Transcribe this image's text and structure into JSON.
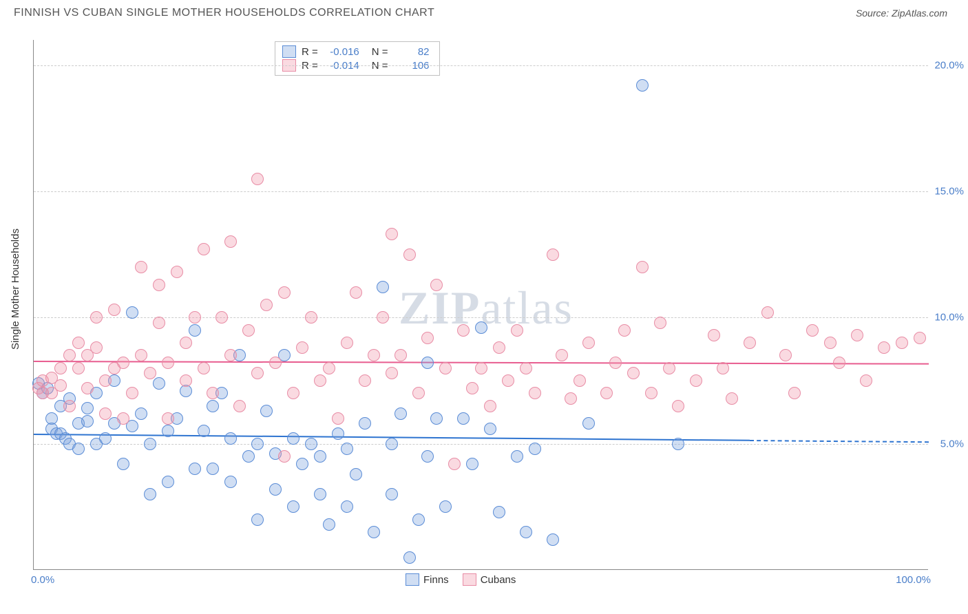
{
  "title": "FINNISH VS CUBAN SINGLE MOTHER HOUSEHOLDS CORRELATION CHART",
  "source_label": "Source: ZipAtlas.com",
  "y_axis_title": "Single Mother Households",
  "watermark_bold": "ZIP",
  "watermark_rest": "atlas",
  "chart": {
    "type": "scatter",
    "xlim": [
      0,
      100
    ],
    "ylim": [
      0,
      21
    ],
    "y_ticks": [
      5,
      10,
      15,
      20
    ],
    "y_tick_labels": [
      "5.0%",
      "10.0%",
      "15.0%",
      "20.0%"
    ],
    "x_tick_left": "0.0%",
    "x_tick_right": "100.0%",
    "background_color": "#ffffff",
    "grid_color": "#cccccc",
    "marker_radius": 9,
    "marker_border_width": 1.2,
    "series": [
      {
        "name": "Finns",
        "fill": "rgba(120,160,220,0.35)",
        "stroke": "#5a8cd6",
        "trend_color": "#2e74d0",
        "trend_y_start": 5.4,
        "trend_y_end": 5.1,
        "trend_solid_end_x": 80,
        "R": "-0.016",
        "N": "82",
        "points": [
          [
            0.5,
            7.4
          ],
          [
            1,
            7.0
          ],
          [
            1.5,
            7.2
          ],
          [
            2,
            6.0
          ],
          [
            2,
            5.6
          ],
          [
            2.5,
            5.4
          ],
          [
            3,
            5.4
          ],
          [
            3,
            6.5
          ],
          [
            3.5,
            5.2
          ],
          [
            4,
            6.8
          ],
          [
            4,
            5.0
          ],
          [
            5,
            5.8
          ],
          [
            5,
            4.8
          ],
          [
            6,
            5.9
          ],
          [
            6,
            6.4
          ],
          [
            7,
            7.0
          ],
          [
            7,
            5.0
          ],
          [
            8,
            5.2
          ],
          [
            9,
            7.5
          ],
          [
            9,
            5.8
          ],
          [
            10,
            4.2
          ],
          [
            11,
            10.2
          ],
          [
            11,
            5.7
          ],
          [
            12,
            6.2
          ],
          [
            13,
            3.0
          ],
          [
            13,
            5.0
          ],
          [
            14,
            7.4
          ],
          [
            15,
            3.5
          ],
          [
            15,
            5.5
          ],
          [
            16,
            6.0
          ],
          [
            17,
            7.1
          ],
          [
            18,
            4.0
          ],
          [
            18,
            9.5
          ],
          [
            19,
            5.5
          ],
          [
            20,
            6.5
          ],
          [
            20,
            4.0
          ],
          [
            21,
            7.0
          ],
          [
            22,
            3.5
          ],
          [
            22,
            5.2
          ],
          [
            23,
            8.5
          ],
          [
            24,
            4.5
          ],
          [
            25,
            2.0
          ],
          [
            25,
            5.0
          ],
          [
            26,
            6.3
          ],
          [
            27,
            3.2
          ],
          [
            27,
            4.6
          ],
          [
            28,
            8.5
          ],
          [
            29,
            5.2
          ],
          [
            29,
            2.5
          ],
          [
            30,
            4.2
          ],
          [
            31,
            5.0
          ],
          [
            32,
            3.0
          ],
          [
            32,
            4.5
          ],
          [
            33,
            1.8
          ],
          [
            34,
            5.4
          ],
          [
            35,
            2.5
          ],
          [
            35,
            4.8
          ],
          [
            36,
            3.8
          ],
          [
            37,
            5.8
          ],
          [
            38,
            1.5
          ],
          [
            39,
            11.2
          ],
          [
            40,
            5.0
          ],
          [
            40,
            3.0
          ],
          [
            41,
            6.2
          ],
          [
            42,
            0.5
          ],
          [
            43,
            2.0
          ],
          [
            44,
            8.2
          ],
          [
            44,
            4.5
          ],
          [
            45,
            6.0
          ],
          [
            46,
            2.5
          ],
          [
            48,
            6.0
          ],
          [
            49,
            4.2
          ],
          [
            50,
            9.6
          ],
          [
            51,
            5.6
          ],
          [
            52,
            2.3
          ],
          [
            54,
            4.5
          ],
          [
            55,
            1.5
          ],
          [
            56,
            4.8
          ],
          [
            58,
            1.2
          ],
          [
            62,
            5.8
          ],
          [
            68,
            19.2
          ],
          [
            72,
            5.0
          ]
        ]
      },
      {
        "name": "Cubans",
        "fill": "rgba(240,150,170,0.35)",
        "stroke": "#e88ca5",
        "trend_color": "#e85c8f",
        "trend_y_start": 8.3,
        "trend_y_end": 8.2,
        "trend_solid_end_x": 100,
        "R": "-0.014",
        "N": "106",
        "points": [
          [
            0.5,
            7.2
          ],
          [
            1,
            7.5
          ],
          [
            1,
            7.0
          ],
          [
            2,
            7.6
          ],
          [
            2,
            7.0
          ],
          [
            3,
            8.0
          ],
          [
            3,
            7.3
          ],
          [
            4,
            8.5
          ],
          [
            4,
            6.5
          ],
          [
            5,
            8.0
          ],
          [
            5,
            9.0
          ],
          [
            6,
            8.5
          ],
          [
            6,
            7.2
          ],
          [
            7,
            8.8
          ],
          [
            7,
            10.0
          ],
          [
            8,
            7.5
          ],
          [
            8,
            6.2
          ],
          [
            9,
            10.3
          ],
          [
            9,
            8.0
          ],
          [
            10,
            8.2
          ],
          [
            10,
            6.0
          ],
          [
            11,
            7.0
          ],
          [
            12,
            12.0
          ],
          [
            12,
            8.5
          ],
          [
            13,
            7.8
          ],
          [
            14,
            9.8
          ],
          [
            14,
            11.3
          ],
          [
            15,
            8.2
          ],
          [
            15,
            6.0
          ],
          [
            16,
            11.8
          ],
          [
            17,
            9.0
          ],
          [
            17,
            7.5
          ],
          [
            18,
            10.0
          ],
          [
            19,
            12.7
          ],
          [
            19,
            8.0
          ],
          [
            20,
            7.0
          ],
          [
            21,
            10.0
          ],
          [
            22,
            13.0
          ],
          [
            22,
            8.5
          ],
          [
            23,
            6.5
          ],
          [
            24,
            9.5
          ],
          [
            25,
            15.5
          ],
          [
            25,
            7.8
          ],
          [
            26,
            10.5
          ],
          [
            27,
            8.2
          ],
          [
            28,
            11.0
          ],
          [
            28,
            4.5
          ],
          [
            29,
            7.0
          ],
          [
            30,
            8.8
          ],
          [
            31,
            10.0
          ],
          [
            32,
            7.5
          ],
          [
            33,
            8.0
          ],
          [
            34,
            6.0
          ],
          [
            35,
            9.0
          ],
          [
            36,
            11.0
          ],
          [
            37,
            7.5
          ],
          [
            38,
            8.5
          ],
          [
            39,
            10.0
          ],
          [
            40,
            13.3
          ],
          [
            40,
            7.8
          ],
          [
            41,
            8.5
          ],
          [
            42,
            12.5
          ],
          [
            43,
            7.0
          ],
          [
            44,
            9.2
          ],
          [
            45,
            11.3
          ],
          [
            46,
            8.0
          ],
          [
            47,
            4.2
          ],
          [
            48,
            9.5
          ],
          [
            49,
            7.2
          ],
          [
            50,
            8.0
          ],
          [
            51,
            6.5
          ],
          [
            52,
            8.8
          ],
          [
            53,
            7.5
          ],
          [
            54,
            9.5
          ],
          [
            55,
            8.0
          ],
          [
            56,
            7.0
          ],
          [
            58,
            12.5
          ],
          [
            59,
            8.5
          ],
          [
            60,
            6.8
          ],
          [
            61,
            7.5
          ],
          [
            62,
            9.0
          ],
          [
            64,
            7.0
          ],
          [
            65,
            8.2
          ],
          [
            66,
            9.5
          ],
          [
            67,
            7.8
          ],
          [
            68,
            12.0
          ],
          [
            69,
            7.0
          ],
          [
            70,
            9.8
          ],
          [
            71,
            8.0
          ],
          [
            72,
            6.5
          ],
          [
            74,
            7.5
          ],
          [
            76,
            9.3
          ],
          [
            77,
            8.0
          ],
          [
            78,
            6.8
          ],
          [
            80,
            9.0
          ],
          [
            82,
            10.2
          ],
          [
            84,
            8.5
          ],
          [
            85,
            7.0
          ],
          [
            87,
            9.5
          ],
          [
            89,
            9.0
          ],
          [
            90,
            8.2
          ],
          [
            92,
            9.3
          ],
          [
            93,
            7.5
          ],
          [
            95,
            8.8
          ],
          [
            97,
            9.0
          ],
          [
            99,
            9.2
          ]
        ]
      }
    ]
  },
  "legend_corr_labels": {
    "r_prefix": "R = ",
    "n_prefix": "N = "
  },
  "legend_bottom": {
    "finns": "Finns",
    "cubans": "Cubans"
  }
}
